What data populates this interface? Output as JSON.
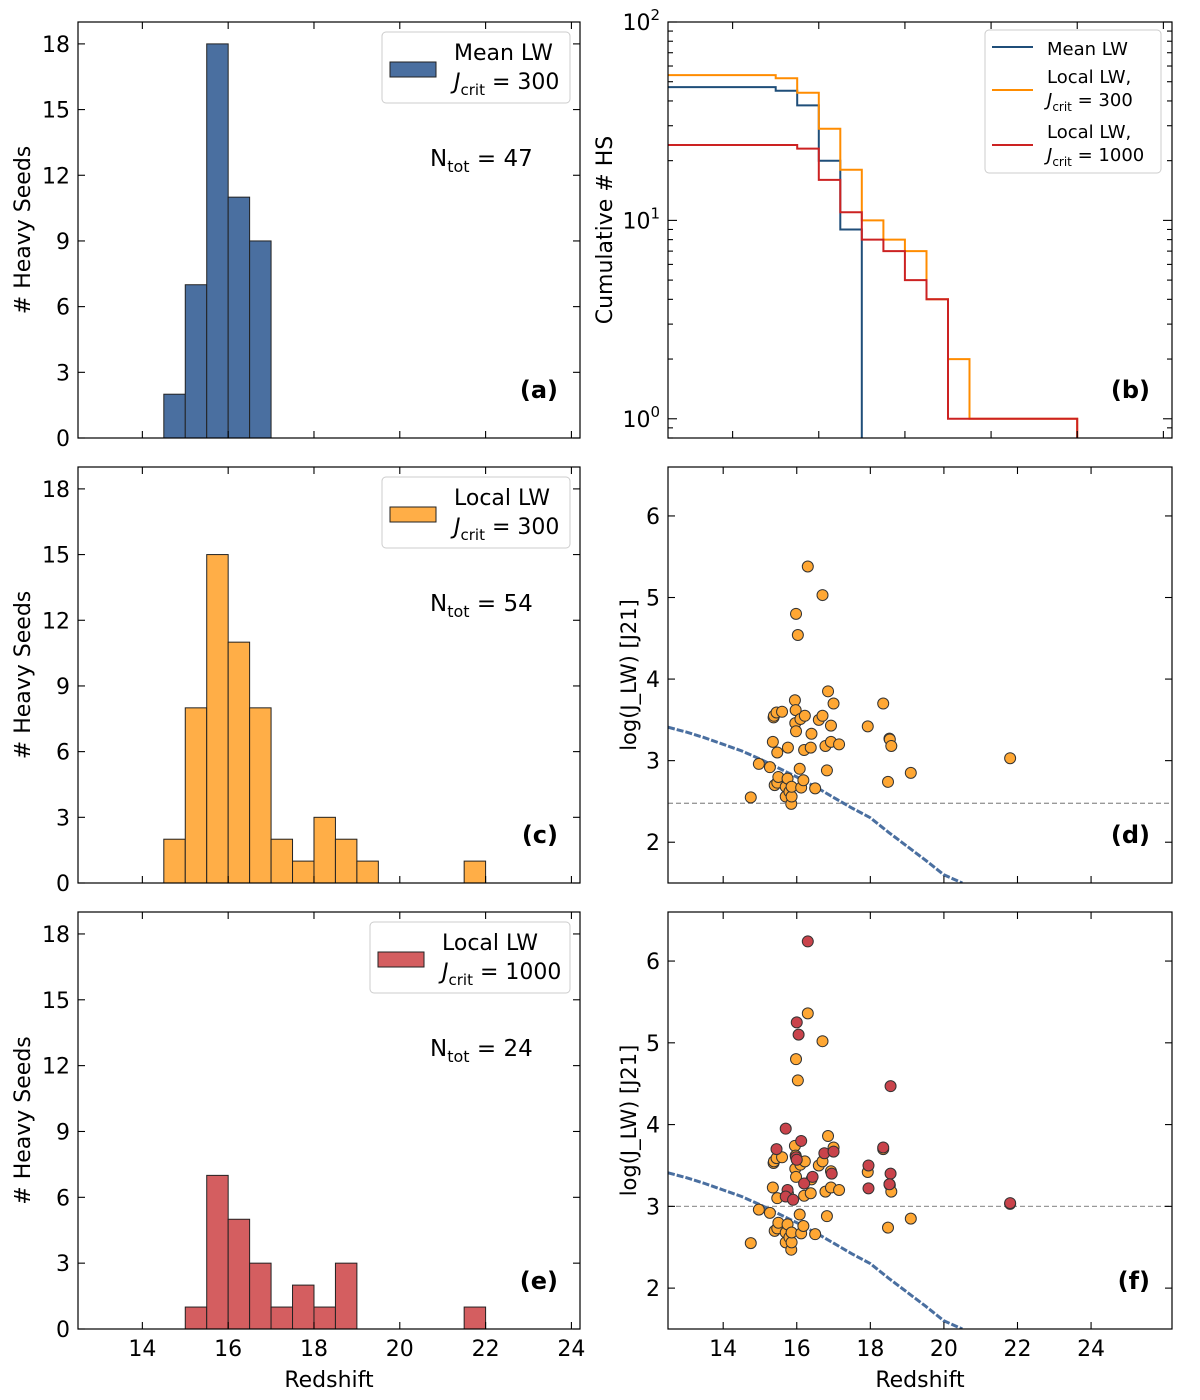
{
  "chart_data": [
    {
      "panel": "(a)",
      "type": "bar",
      "kind": "histogram",
      "bin_edges": [
        14.5,
        15.0,
        15.5,
        16.0,
        16.5,
        17.0
      ],
      "values": [
        2,
        7,
        18,
        11,
        9
      ],
      "color": "#4a6fa0",
      "xlim": [
        12.5,
        24.2
      ],
      "ylim": [
        0,
        19
      ],
      "yticks": [
        0,
        3,
        6,
        9,
        12,
        15,
        18
      ],
      "ylabel": "# Heavy Seeds",
      "legend": {
        "line1": "Mean LW",
        "line2_prefix": "J",
        "line2_sub": "crit",
        "line2_suffix": " = 300"
      },
      "ntot": {
        "prefix": "N",
        "sub": "tot",
        "suffix": " = 47"
      },
      "label": "(a)"
    },
    {
      "panel": "(b)",
      "type": "line",
      "kind": "cumulative step",
      "yscale": "log",
      "xlim": [
        12.5,
        24.2
      ],
      "ylim": [
        0.8,
        100
      ],
      "ytick_labels": [
        {
          "base": "10",
          "exp": "0"
        },
        {
          "base": "10",
          "exp": "1"
        },
        {
          "base": "10",
          "exp": "2"
        }
      ],
      "ylabel": "Cumulative # HS",
      "series": [
        {
          "name": "Mean LW",
          "color": "#1f4e79",
          "edges": [
            12.5,
            15.0,
            15.5,
            16.0,
            16.5,
            17.0
          ],
          "values": [
            47,
            45,
            38,
            20,
            9
          ]
        },
        {
          "name": "Local LW, J_crit=300",
          "color": "#ff8c00",
          "edges": [
            12.5,
            15.0,
            15.5,
            16.0,
            16.5,
            17.0,
            17.5,
            18.0,
            18.5,
            19.0,
            19.5,
            22.0
          ],
          "values": [
            54,
            52,
            44,
            29,
            18,
            10,
            8,
            7,
            4,
            2,
            1
          ]
        },
        {
          "name": "Local LW, J_crit=1000",
          "color": "#cc2222",
          "edges": [
            12.5,
            15.0,
            15.5,
            16.0,
            16.5,
            17.0,
            17.5,
            18.0,
            18.5,
            19.0,
            22.0
          ],
          "values": [
            24,
            24,
            23,
            16,
            11,
            8,
            7,
            5,
            4,
            1
          ]
        }
      ],
      "legend": [
        {
          "line1": "Mean LW",
          "color": "#1f4e79"
        },
        {
          "line1": "Local LW,",
          "line2_prefix": "J",
          "line2_sub": "crit",
          "line2_suffix": " = 300",
          "color": "#ff8c00"
        },
        {
          "line1": "Local LW,",
          "line2_prefix": "J",
          "line2_sub": "crit",
          "line2_suffix": " = 1000",
          "color": "#cc2222"
        }
      ],
      "label": "(b)"
    },
    {
      "panel": "(c)",
      "type": "bar",
      "kind": "histogram",
      "bin_edges": [
        14.5,
        15.0,
        15.5,
        16.0,
        16.5,
        17.0,
        17.5,
        18.0,
        18.5,
        19.0,
        19.5,
        20.0,
        20.5,
        21.0,
        21.5,
        22.0
      ],
      "values": [
        2,
        8,
        15,
        11,
        8,
        2,
        1,
        3,
        2,
        1,
        0,
        0,
        0,
        0,
        1
      ],
      "color": "#ffae47",
      "xlim": [
        12.5,
        24.2
      ],
      "ylim": [
        0,
        19
      ],
      "yticks": [
        0,
        3,
        6,
        9,
        12,
        15,
        18
      ],
      "ylabel": "# Heavy Seeds",
      "legend": {
        "line1": "Local LW",
        "line2_prefix": "J",
        "line2_sub": "crit",
        "line2_suffix": " = 300"
      },
      "ntot": {
        "prefix": "N",
        "sub": "tot",
        "suffix": " = 54"
      },
      "label": "(c)"
    },
    {
      "panel": "(d)",
      "type": "scatter",
      "xlim": [
        12.5,
        26.2
      ],
      "ylim": [
        1.5,
        6.6
      ],
      "yticks": [
        2,
        3,
        4,
        5,
        6
      ],
      "ylabel": "log(J_LW) [J21]",
      "threshold": 2.477,
      "mean_curve": {
        "x": [
          12.5,
          13.0,
          13.5,
          14.0,
          14.5,
          15.0,
          15.5,
          16.0,
          16.5,
          17.0,
          17.5,
          18.0,
          18.5,
          19.0,
          19.5,
          20.0,
          20.5
        ],
        "y": [
          3.41,
          3.35,
          3.28,
          3.2,
          3.12,
          3.02,
          2.91,
          2.8,
          2.68,
          2.55,
          2.42,
          2.3,
          2.12,
          1.95,
          1.78,
          1.6,
          1.5
        ]
      },
      "series": [
        {
          "name": "Local LW, J_crit=300",
          "color": "#ffa733",
          "points": [
            [
              14.75,
              2.55
            ],
            [
              14.97,
              2.96
            ],
            [
              15.27,
              2.92
            ],
            [
              15.35,
              3.23
            ],
            [
              15.37,
              3.53
            ],
            [
              15.38,
              3.55
            ],
            [
              15.4,
              2.7
            ],
            [
              15.45,
              3.59
            ],
            [
              15.47,
              2.73
            ],
            [
              15.47,
              3.1
            ],
            [
              15.5,
              2.8
            ],
            [
              15.6,
              3.6
            ],
            [
              15.7,
              2.56
            ],
            [
              15.7,
              2.68
            ],
            [
              15.75,
              2.78
            ],
            [
              15.76,
              3.16
            ],
            [
              15.8,
              2.62
            ],
            [
              15.85,
              2.47
            ],
            [
              15.86,
              2.56
            ],
            [
              15.86,
              2.68
            ],
            [
              15.95,
              3.74
            ],
            [
              15.96,
              3.46
            ],
            [
              15.97,
              3.62
            ],
            [
              15.98,
              4.8
            ],
            [
              15.98,
              3.36
            ],
            [
              16.03,
              4.54
            ],
            [
              16.08,
              2.9
            ],
            [
              16.1,
              3.51
            ],
            [
              16.12,
              2.67
            ],
            [
              16.18,
              2.76
            ],
            [
              16.2,
              3.13
            ],
            [
              16.22,
              3.55
            ],
            [
              16.3,
              5.38
            ],
            [
              16.38,
              3.16
            ],
            [
              16.4,
              3.33
            ],
            [
              16.5,
              2.66
            ],
            [
              16.6,
              3.5
            ],
            [
              16.7,
              5.03
            ],
            [
              16.7,
              3.55
            ],
            [
              16.78,
              3.18
            ],
            [
              16.82,
              2.88
            ],
            [
              16.85,
              3.85
            ],
            [
              16.93,
              3.43
            ],
            [
              16.93,
              3.23
            ],
            [
              17.0,
              3.7
            ],
            [
              17.15,
              3.2
            ],
            [
              17.93,
              3.42
            ],
            [
              18.35,
              3.7
            ],
            [
              18.48,
              2.74
            ],
            [
              18.52,
              3.27
            ],
            [
              18.53,
              3.26
            ],
            [
              18.57,
              3.18
            ],
            [
              19.1,
              2.85
            ],
            [
              21.8,
              3.03
            ]
          ]
        }
      ],
      "label": "(d)"
    },
    {
      "panel": "(e)",
      "type": "bar",
      "kind": "histogram",
      "bin_edges": [
        15.0,
        15.5,
        16.0,
        16.5,
        17.0,
        17.5,
        18.0,
        18.5,
        19.0,
        19.5,
        20.0,
        20.5,
        21.0,
        21.5,
        22.0
      ],
      "values": [
        1,
        7,
        5,
        3,
        1,
        2,
        1,
        3,
        0,
        0,
        0,
        0,
        0,
        1
      ],
      "color": "#d45e60",
      "xlim": [
        12.5,
        24.2
      ],
      "ylim": [
        0,
        19
      ],
      "xticks": [
        14,
        16,
        18,
        20,
        22,
        24
      ],
      "xlabel": "Redshift",
      "yticks": [
        0,
        3,
        6,
        9,
        12,
        15,
        18
      ],
      "ylabel": "# Heavy Seeds",
      "legend": {
        "line1": "Local LW",
        "line2_prefix": "J",
        "line2_sub": "crit",
        "line2_suffix": " = 1000"
      },
      "ntot": {
        "prefix": "N",
        "sub": "tot",
        "suffix": " = 24"
      },
      "label": "(e)"
    },
    {
      "panel": "(f)",
      "type": "scatter",
      "xlim": [
        12.5,
        26.2
      ],
      "ylim": [
        1.5,
        6.6
      ],
      "xticks": [
        14,
        16,
        18,
        20,
        22,
        24
      ],
      "xlabel": "Redshift",
      "yticks": [
        2,
        3,
        4,
        5,
        6
      ],
      "ylabel": "log(J_LW) [J21]",
      "threshold": 3.0,
      "mean_curve": {
        "x": [
          12.5,
          13.0,
          13.5,
          14.0,
          14.5,
          15.0,
          15.5,
          16.0,
          16.5,
          17.0,
          17.5,
          18.0,
          18.5,
          19.0,
          19.5,
          20.0,
          20.5
        ],
        "y": [
          3.41,
          3.35,
          3.28,
          3.2,
          3.12,
          3.02,
          2.91,
          2.8,
          2.68,
          2.55,
          2.42,
          2.3,
          2.12,
          1.95,
          1.78,
          1.6,
          1.5
        ]
      },
      "series": [
        {
          "name": "Local LW, J_crit=300",
          "color": "#ffa733",
          "points": [
            [
              14.75,
              2.55
            ],
            [
              14.97,
              2.96
            ],
            [
              15.27,
              2.92
            ],
            [
              15.35,
              3.23
            ],
            [
              15.37,
              3.53
            ],
            [
              15.38,
              3.55
            ],
            [
              15.4,
              2.7
            ],
            [
              15.45,
              3.59
            ],
            [
              15.47,
              2.73
            ],
            [
              15.47,
              3.1
            ],
            [
              15.5,
              2.8
            ],
            [
              15.6,
              3.6
            ],
            [
              15.7,
              2.56
            ],
            [
              15.7,
              2.68
            ],
            [
              15.75,
              2.78
            ],
            [
              15.76,
              3.16
            ],
            [
              15.8,
              2.62
            ],
            [
              15.85,
              2.47
            ],
            [
              15.86,
              2.56
            ],
            [
              15.86,
              2.68
            ],
            [
              15.95,
              3.74
            ],
            [
              15.96,
              3.46
            ],
            [
              15.97,
              3.62
            ],
            [
              15.98,
              4.8
            ],
            [
              15.98,
              3.36
            ],
            [
              16.03,
              4.54
            ],
            [
              16.08,
              2.9
            ],
            [
              16.1,
              3.51
            ],
            [
              16.12,
              2.67
            ],
            [
              16.18,
              2.76
            ],
            [
              16.2,
              3.13
            ],
            [
              16.22,
              3.55
            ],
            [
              16.3,
              5.36
            ],
            [
              16.38,
              3.16
            ],
            [
              16.4,
              3.33
            ],
            [
              16.5,
              2.66
            ],
            [
              16.6,
              3.5
            ],
            [
              16.7,
              5.02
            ],
            [
              16.7,
              3.55
            ],
            [
              16.78,
              3.18
            ],
            [
              16.82,
              2.88
            ],
            [
              16.85,
              3.86
            ],
            [
              16.93,
              3.43
            ],
            [
              16.93,
              3.23
            ],
            [
              17.0,
              3.72
            ],
            [
              17.15,
              3.2
            ],
            [
              17.93,
              3.42
            ],
            [
              18.35,
              3.7
            ],
            [
              18.48,
              2.74
            ],
            [
              18.52,
              3.27
            ],
            [
              18.53,
              3.26
            ],
            [
              18.57,
              3.18
            ],
            [
              19.1,
              2.85
            ],
            [
              21.8,
              3.03
            ]
          ]
        },
        {
          "name": "Local LW, J_crit=1000",
          "color": "#c9434b",
          "points": [
            [
              15.45,
              3.7
            ],
            [
              15.7,
              3.95
            ],
            [
              15.75,
              3.2
            ],
            [
              15.7,
              3.12
            ],
            [
              15.9,
              3.08
            ],
            [
              16.0,
              5.25
            ],
            [
              16.05,
              5.1
            ],
            [
              15.98,
              3.6
            ],
            [
              16.0,
              3.57
            ],
            [
              16.12,
              3.8
            ],
            [
              16.2,
              3.28
            ],
            [
              16.3,
              6.24
            ],
            [
              16.43,
              3.36
            ],
            [
              16.75,
              3.65
            ],
            [
              16.95,
              3.4
            ],
            [
              17.0,
              3.67
            ],
            [
              17.95,
              3.5
            ],
            [
              17.95,
              3.22
            ],
            [
              18.35,
              3.72
            ],
            [
              18.55,
              4.47
            ],
            [
              18.55,
              3.4
            ],
            [
              18.52,
              3.27
            ],
            [
              21.8,
              3.04
            ]
          ]
        }
      ],
      "label": "(f)"
    }
  ]
}
